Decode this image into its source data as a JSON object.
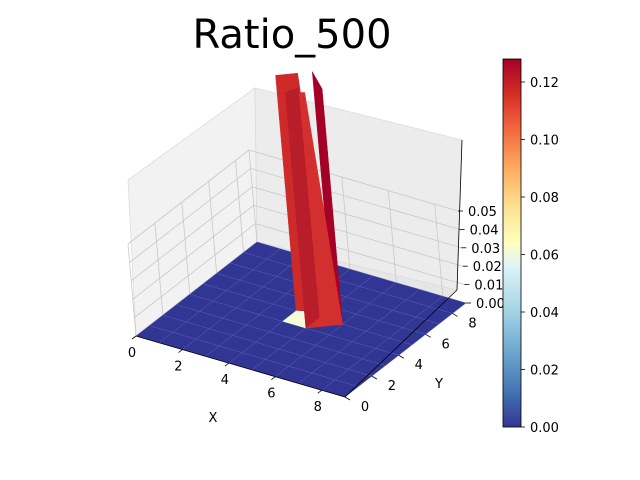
{
  "chart_data": {
    "type": "surface3d",
    "title": "Ratio_500",
    "xlabel": "X",
    "ylabel": "Y",
    "zlabel": "",
    "x_ticks": [
      "0",
      "2",
      "4",
      "6",
      "8"
    ],
    "y_ticks": [
      "0",
      "2",
      "4",
      "6",
      "8"
    ],
    "z_ticks": [
      "0.00",
      "0.01",
      "0.02",
      "0.03",
      "0.04",
      "0.05"
    ],
    "xlim": [
      0,
      9
    ],
    "ylim": [
      0,
      9
    ],
    "zlim": [
      0,
      0.05
    ],
    "colormap": "RdYlBu_r",
    "colorbar": {
      "ticks": [
        "0.00",
        "0.02",
        "0.04",
        "0.06",
        "0.08",
        "0.10",
        "0.12"
      ],
      "range": [
        0,
        0.128
      ]
    },
    "grid": true,
    "surface": {
      "base_value": 0,
      "base_color": "#313695",
      "peak_cells": [
        {
          "x": 4,
          "y": 4,
          "value": 0.06,
          "color": "#f7fbd9"
        },
        {
          "x": 4,
          "y": 5,
          "value": 0.128,
          "color": "#ce2a2a"
        },
        {
          "x": 5,
          "y": 4,
          "value": 0.128,
          "color": "#d32f2f"
        },
        {
          "x": 5,
          "y": 5,
          "value": 0.128,
          "color": "#a50026"
        }
      ]
    }
  }
}
